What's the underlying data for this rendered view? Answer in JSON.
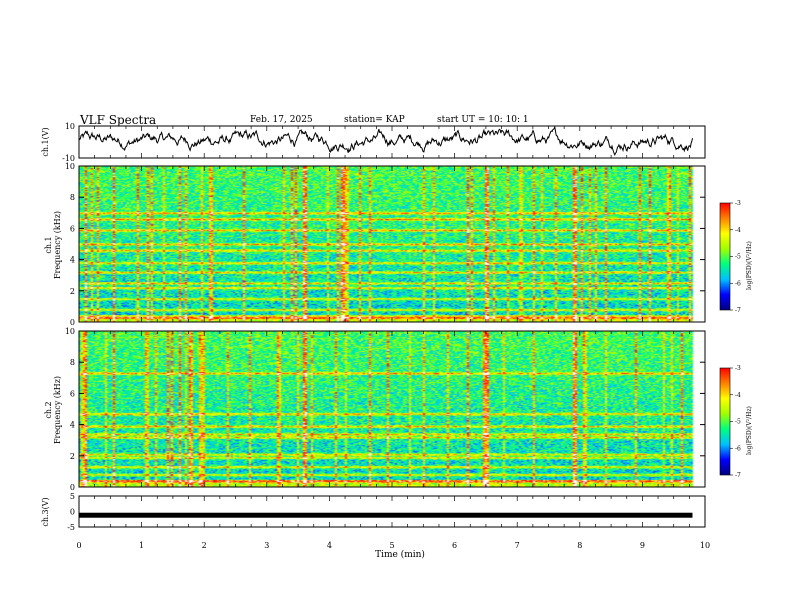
{
  "header": {
    "title": "VLF Spectra",
    "date": "Feb. 17, 2025",
    "station": "station= KAP",
    "start": "start UT =  10: 10: 1"
  },
  "colors": {
    "spectrum_stops": [
      "#000080",
      "#0000ff",
      "#00c0ff",
      "#00ff80",
      "#a0ff00",
      "#ffff00",
      "#ff8000",
      "#ff0000",
      "#ffffff"
    ]
  },
  "chart_data": [
    {
      "type": "line",
      "name": "ch1-waveform",
      "ylabel": "ch.1(V)",
      "ylim": [
        -10,
        10
      ],
      "yticks": [
        "10",
        "-10"
      ],
      "x_range": [
        0,
        9.8
      ],
      "amplitude_note": "noise between about -8 and 10 V"
    },
    {
      "type": "heatmap",
      "name": "ch1-spectrogram",
      "ylabel_1": "ch.1",
      "ylabel_2": "Frequency (kHz)",
      "ylim": [
        0,
        10
      ],
      "yticks": [
        "0",
        "2",
        "4",
        "6",
        "8",
        "10"
      ],
      "bands_khz": [
        0.3,
        0.8,
        1.5,
        2.2,
        2.5,
        3.2,
        3.8,
        4.6,
        5.0,
        5.9,
        6.6,
        7.0
      ],
      "bright_lines_min": [
        0.1,
        0.55,
        1.6,
        3.6,
        4.2,
        6.2,
        6.5,
        7.9,
        9.1
      ],
      "colorbar": {
        "label": "log(PSD)(V²/Hz)",
        "ticks": [
          "-3",
          "-4",
          "-5",
          "-6",
          "-7"
        ],
        "range": [
          -7,
          -3
        ]
      }
    },
    {
      "type": "heatmap",
      "name": "ch2-spectrogram",
      "ylabel_1": "ch.2",
      "ylabel_2": "Frequency (kHz)",
      "ylim": [
        0,
        10
      ],
      "yticks": [
        "0",
        "2",
        "4",
        "6",
        "8",
        "10"
      ],
      "bands_khz": [
        0.4,
        0.8,
        1.3,
        1.9,
        2.1,
        3.2,
        3.4,
        3.9,
        4.7,
        7.3
      ],
      "bright_lines_min": [
        0.1,
        0.55,
        1.6,
        3.6,
        6.2,
        6.5,
        7.9
      ],
      "colorbar": {
        "label": "log(PSD)(V²/Hz)",
        "ticks": [
          "-3",
          "-4",
          "-5",
          "-6",
          "-7"
        ],
        "range": [
          -7,
          -3
        ]
      }
    },
    {
      "type": "line",
      "name": "ch3-waveform",
      "ylabel": "ch.3(V)",
      "ylim": [
        -5,
        5
      ],
      "yticks": [
        "5",
        "0",
        "-5"
      ],
      "level": -1.2,
      "x_range": [
        0,
        9.8
      ]
    }
  ],
  "xaxis": {
    "label": "Time (min)",
    "range": [
      0,
      10
    ],
    "ticks": [
      "0",
      "1",
      "2",
      "3",
      "4",
      "5",
      "6",
      "7",
      "8",
      "9",
      "10"
    ]
  }
}
